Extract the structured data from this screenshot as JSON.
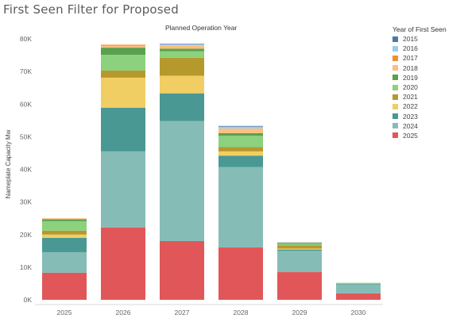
{
  "page": {
    "title": "First Seen Filter for Proposed"
  },
  "chart_data": {
    "type": "bar",
    "stacked": true,
    "title": "Planned Operation Year",
    "ylabel": "Nameplate Capacity Mw",
    "xlabel": "",
    "categories": [
      "2025",
      "2026",
      "2027",
      "2028",
      "2029",
      "2030"
    ],
    "ylim": [
      0,
      80000
    ],
    "yticks": [
      {
        "value": 0,
        "label": "0K"
      },
      {
        "value": 10000,
        "label": "10K"
      },
      {
        "value": 20000,
        "label": "20K"
      },
      {
        "value": 30000,
        "label": "30K"
      },
      {
        "value": 40000,
        "label": "40K"
      },
      {
        "value": 50000,
        "label": "50K"
      },
      {
        "value": 60000,
        "label": "60K"
      },
      {
        "value": 70000,
        "label": "70K"
      },
      {
        "value": 80000,
        "label": "80K"
      }
    ],
    "legend_title": "Year of First Seen",
    "legend_position": "right",
    "series": [
      {
        "name": "2025",
        "color": "#e15759",
        "values": [
          8300,
          22200,
          18000,
          16100,
          8500,
          2000
        ]
      },
      {
        "name": "2024",
        "color": "#86bcb6",
        "values": [
          6300,
          23300,
          36800,
          24600,
          6500,
          2700
        ]
      },
      {
        "name": "2023",
        "color": "#499894",
        "values": [
          4400,
          13400,
          8500,
          3500,
          400,
          200
        ]
      },
      {
        "name": "2022",
        "color": "#f1ce63",
        "values": [
          1000,
          9200,
          5400,
          1300,
          300,
          0
        ]
      },
      {
        "name": "2021",
        "color": "#b6992d",
        "values": [
          1200,
          2200,
          5500,
          1300,
          1000,
          0
        ]
      },
      {
        "name": "2020",
        "color": "#8cd17d",
        "values": [
          2900,
          4800,
          2000,
          3500,
          400,
          300
        ]
      },
      {
        "name": "2019",
        "color": "#59a14f",
        "values": [
          600,
          2200,
          800,
          800,
          300,
          0
        ]
      },
      {
        "name": "2018",
        "color": "#ffbe7d",
        "values": [
          300,
          600,
          1000,
          1400,
          200,
          0
        ]
      },
      {
        "name": "2017",
        "color": "#f28e2b",
        "values": [
          0,
          300,
          0,
          0,
          0,
          0
        ]
      },
      {
        "name": "2016",
        "color": "#a0cbe8",
        "values": [
          0,
          0,
          400,
          600,
          100,
          0
        ]
      },
      {
        "name": "2015",
        "color": "#4e79a7",
        "values": [
          0,
          0,
          100,
          200,
          0,
          0
        ]
      }
    ],
    "legend_order": [
      "2015",
      "2016",
      "2017",
      "2018",
      "2019",
      "2020",
      "2021",
      "2022",
      "2023",
      "2024",
      "2025"
    ],
    "grid": false
  }
}
